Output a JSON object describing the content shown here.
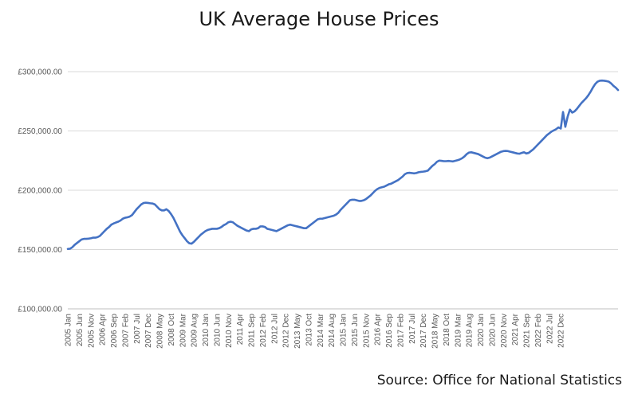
{
  "chart_data": {
    "type": "line",
    "title": "UK Average House Prices",
    "source": "Source: Office for National Statistics",
    "xlabel": "",
    "ylabel": "",
    "ylim": [
      100000,
      300000
    ],
    "yticks": [
      100000,
      150000,
      200000,
      250000,
      300000
    ],
    "ytick_labels": [
      "£100,000.00",
      "£150,000.00",
      "£200,000.00",
      "£250,000.00",
      "£300,000.00"
    ],
    "grid": true,
    "legend": "none",
    "line_color": "#4472c4",
    "x_start": "2005 Jan",
    "x_end": "2023 Mar",
    "xtick_labels": [
      "2005 Jan",
      "2005 Jun",
      "2005 Nov",
      "2006 Apr",
      "2006 Sep",
      "2007 Feb",
      "2007 Jul",
      "2007 Dec",
      "2008 May",
      "2008 Oct",
      "2009 Mar",
      "2009 Aug",
      "2010 Jan",
      "2010 Jun",
      "2010 Nov",
      "2011 Apr",
      "2011 Sep",
      "2012 Feb",
      "2012 Jul",
      "2012 Dec",
      "2013 May",
      "2013 Oct",
      "2014 Mar",
      "2014 Aug",
      "2015 Jan",
      "2015 Jun",
      "2015 Nov",
      "2016 Apr",
      "2016 Sep",
      "2017 Feb",
      "2017 Jul",
      "2017 Dec",
      "2018 May",
      "2018 Oct",
      "2019 Mar",
      "2019 Aug",
      "2020 Jan",
      "2020 Jun",
      "2020 Nov",
      "2021 Apr",
      "2021 Sep",
      "2022 Feb",
      "2022 Jul",
      "2022 Dec"
    ],
    "series": [
      {
        "values": [
          150500,
          150700,
          152000,
          154000,
          155500,
          157000,
          158500,
          159000,
          159000,
          159200,
          159500,
          160000,
          160000,
          160500,
          161500,
          163500,
          165500,
          167500,
          169000,
          171000,
          172000,
          172800,
          173500,
          174500,
          176000,
          176800,
          177200,
          177800,
          179000,
          181500,
          184000,
          186000,
          188000,
          189200,
          189500,
          189300,
          189000,
          188800,
          188000,
          186000,
          184000,
          183000,
          183000,
          184000,
          182500,
          180000,
          177000,
          173000,
          169000,
          165000,
          162000,
          159500,
          157000,
          155300,
          155000,
          156500,
          158500,
          160500,
          162500,
          164000,
          165500,
          166500,
          167000,
          167500,
          167500,
          167500,
          168000,
          169000,
          170500,
          171500,
          173000,
          173500,
          173000,
          171500,
          170000,
          169000,
          168000,
          167000,
          166000,
          165500,
          167000,
          167500,
          167500,
          168000,
          169500,
          169500,
          169000,
          167500,
          167000,
          166500,
          166000,
          165500,
          166500,
          167500,
          168500,
          169500,
          170500,
          171000,
          170500,
          170000,
          169500,
          169000,
          168500,
          168000,
          168000,
          169500,
          171000,
          172500,
          174000,
          175500,
          176000,
          176000,
          176500,
          177000,
          177500,
          178000,
          178500,
          179500,
          181000,
          183500,
          185500,
          187500,
          189500,
          191500,
          192000,
          192000,
          191500,
          191000,
          191000,
          191500,
          192500,
          194000,
          195500,
          197500,
          199500,
          201000,
          202000,
          202500,
          203000,
          204000,
          205000,
          205500,
          206500,
          207500,
          208500,
          210000,
          211500,
          213500,
          214500,
          214700,
          214500,
          214200,
          214500,
          215200,
          215500,
          215700,
          216000,
          216500,
          218500,
          220500,
          222000,
          224000,
          225000,
          224800,
          224500,
          224500,
          224700,
          224500,
          224300,
          224800,
          225300,
          226000,
          227000,
          228500,
          230500,
          231800,
          232000,
          231500,
          231000,
          230500,
          229500,
          228500,
          227500,
          227000,
          227500,
          228500,
          229500,
          230500,
          231500,
          232500,
          233000,
          233200,
          233000,
          232500,
          232000,
          231500,
          231000,
          230800,
          231500,
          232000,
          231000,
          231500,
          233000,
          234500,
          236500,
          238500,
          240500,
          242500,
          244500,
          246500,
          248000,
          249500,
          250500,
          251500,
          253000,
          252000,
          266000,
          253500,
          262000,
          268000,
          265500,
          266500,
          268500,
          271000,
          273500,
          275500,
          277500,
          280000,
          283000,
          286500,
          289500,
          291500,
          292300,
          292500,
          292300,
          292000,
          291500,
          290000,
          288000,
          286500,
          284500
        ]
      }
    ]
  }
}
